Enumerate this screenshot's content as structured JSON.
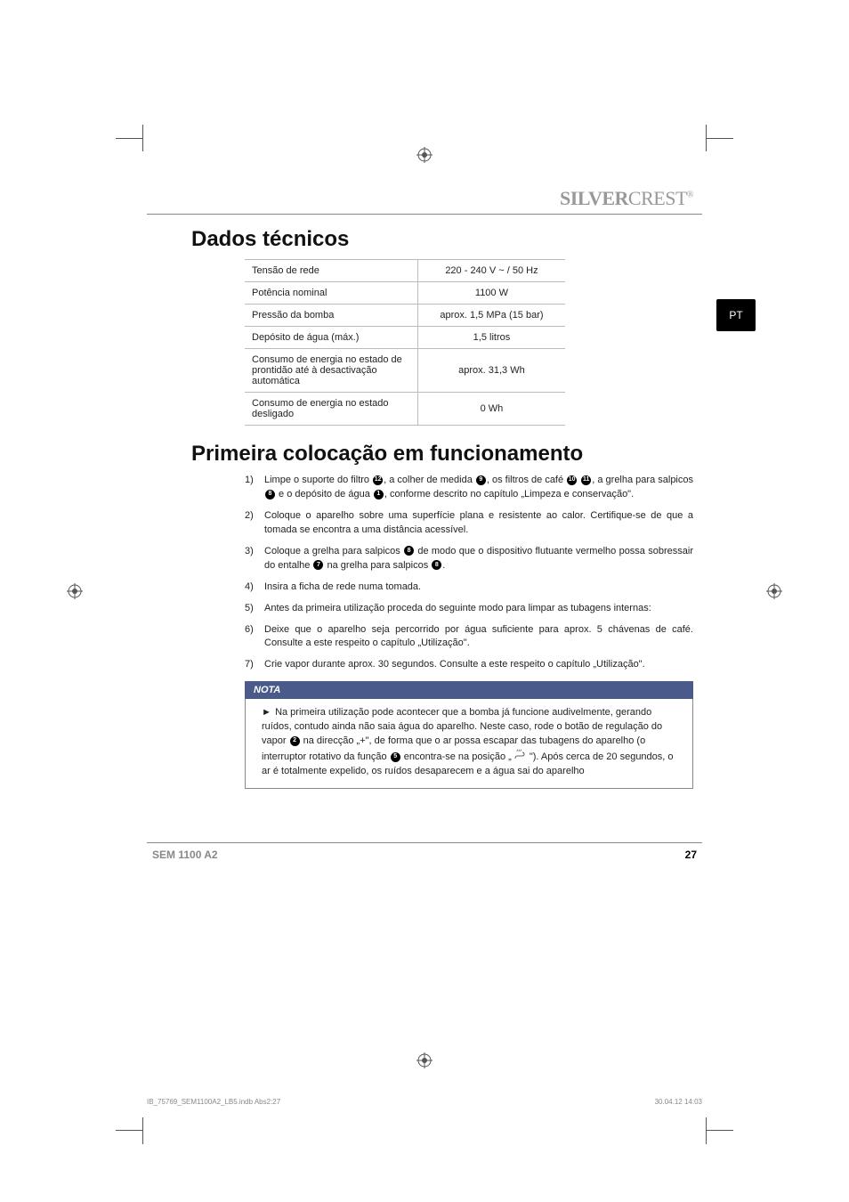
{
  "brand": {
    "part1": "SILVER",
    "part2": "CREST",
    "reg": "®"
  },
  "lang_tab": "PT",
  "section1": {
    "title": "Dados técnicos",
    "rows": [
      {
        "label": "Tensão de rede",
        "value": "220 - 240 V ~ / 50 Hz"
      },
      {
        "label": "Potência nominal",
        "value": "1100 W"
      },
      {
        "label": "Pressão da bomba",
        "value": "aprox. 1,5 MPa (15 bar)"
      },
      {
        "label": "Depósito de água (máx.)",
        "value": "1,5 litros"
      },
      {
        "label": "Consumo de energia no estado de prontidão até à desactivação automática",
        "value": "aprox. 31,3 Wh"
      },
      {
        "label": "Consumo de energia no estado desligado",
        "value": "0 Wh"
      }
    ]
  },
  "section2": {
    "title": "Primeira colocação em funcionamento",
    "items": [
      {
        "n": "1)",
        "pre": "Limpe o suporte do filtro ",
        "r1": "12",
        "mid1": ", a colher de medida ",
        "r2": "9",
        "mid2": ", os filtros de café ",
        "r3": "10",
        "r4": "11",
        "mid3": ", a grelha para salpicos ",
        "r5": "8",
        "mid4": " e o depósito de água ",
        "r6": "1",
        "post": ", conforme descrito no capítulo „Limpeza e conservação\"."
      },
      {
        "n": "2)",
        "text": "Coloque o aparelho sobre uma superfície plana e resistente ao calor. Certifique-se de que a tomada se encontra a uma distância acessível."
      },
      {
        "n": "3)",
        "pre": "Coloque a grelha para salpicos ",
        "r1": "8",
        "mid1": " de modo que o dispositivo flutuante vermelho possa sobressair do entalhe ",
        "r2": "7",
        "mid2": " na grelha para salpicos ",
        "r3": "8",
        "post": "."
      },
      {
        "n": "4)",
        "text": "Insira a ficha de rede numa tomada."
      },
      {
        "n": "5)",
        "text": "Antes da primeira utilização proceda do seguinte modo para limpar as tubagens internas:"
      },
      {
        "n": "6)",
        "text": "Deixe que o aparelho seja percorrido por água suficiente para aprox. 5 chávenas de café. Consulte a este respeito o capítulo „Utilização\"."
      },
      {
        "n": "7)",
        "text": "Crie vapor durante aprox. 30 segundos. Consulte a este respeito o capítulo „Utilização\"."
      }
    ],
    "nota_label": "NOTA",
    "nota": {
      "pre": "Na primeira utilização pode acontecer que a bomba já funcione audivelmente, gerando ruídos, contudo ainda não saia água do aparelho. Neste caso, rode o botão de regulação do vapor ",
      "r1": "2",
      "mid1": " na direcção „+\", de forma que o ar possa escapar das tubagens do aparelho (o interruptor rotativo da função ",
      "r2": "5",
      "mid2": " encontra-se na posição „",
      "post": "\"). Após cerca de 20 segundos, o ar é totalmente expelido, os ruídos desaparecem e a água sai do aparelho"
    }
  },
  "footer": {
    "model": "SEM 1100 A2",
    "page": "27"
  },
  "imprint": {
    "left": "IB_75769_SEM1100A2_LB5.indb   Abs2:27",
    "right": "30.04.12   14:03"
  },
  "colors": {
    "brand": "#999999",
    "tab_bg": "#000000",
    "nota_bg": "#4a5a8a",
    "border": "#bbbbbb",
    "text": "#222222"
  }
}
